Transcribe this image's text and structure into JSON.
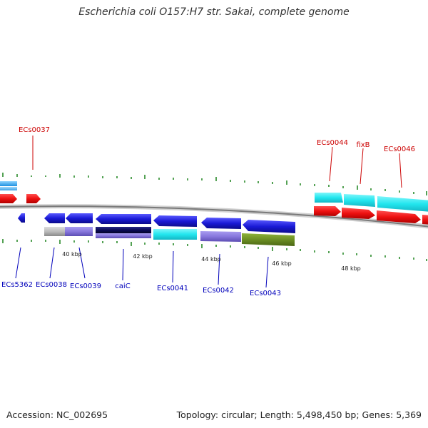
{
  "title": "Escherichia coli O157:H7 str. Sakai, complete genome",
  "footer": {
    "accession": "Accession: NC_002695",
    "summary": "Topology: circular; Length: 5,498,450 bp; Genes: 5,369"
  },
  "scale_labels": [
    "40 kbp",
    "42 kbp",
    "44 kbp",
    "46 kbp",
    "48 kbp"
  ],
  "upper_gene_labels": [
    "ECs0037",
    "ECs0044",
    "fixB",
    "ECs0046"
  ],
  "lower_gene_labels": [
    "ECs5362",
    "ECs0038",
    "ECs0039",
    "caiC",
    "ECs0041",
    "ECs0042",
    "ECs0043"
  ],
  "colors": {
    "forward_strand": "#ee1111",
    "reverse_strand": "#1a1ad6",
    "backbone": "#888888",
    "tick": "#2a8a2a",
    "upper_label": "#cc0000",
    "lower_label": "#0000bb",
    "cyan_feature": "#22e6ee",
    "lavender_feature": "#8877dd",
    "olive_feature": "#6b8e23",
    "navy_feature": "#0a0a55",
    "grey_feature": "#bbbbbb"
  }
}
